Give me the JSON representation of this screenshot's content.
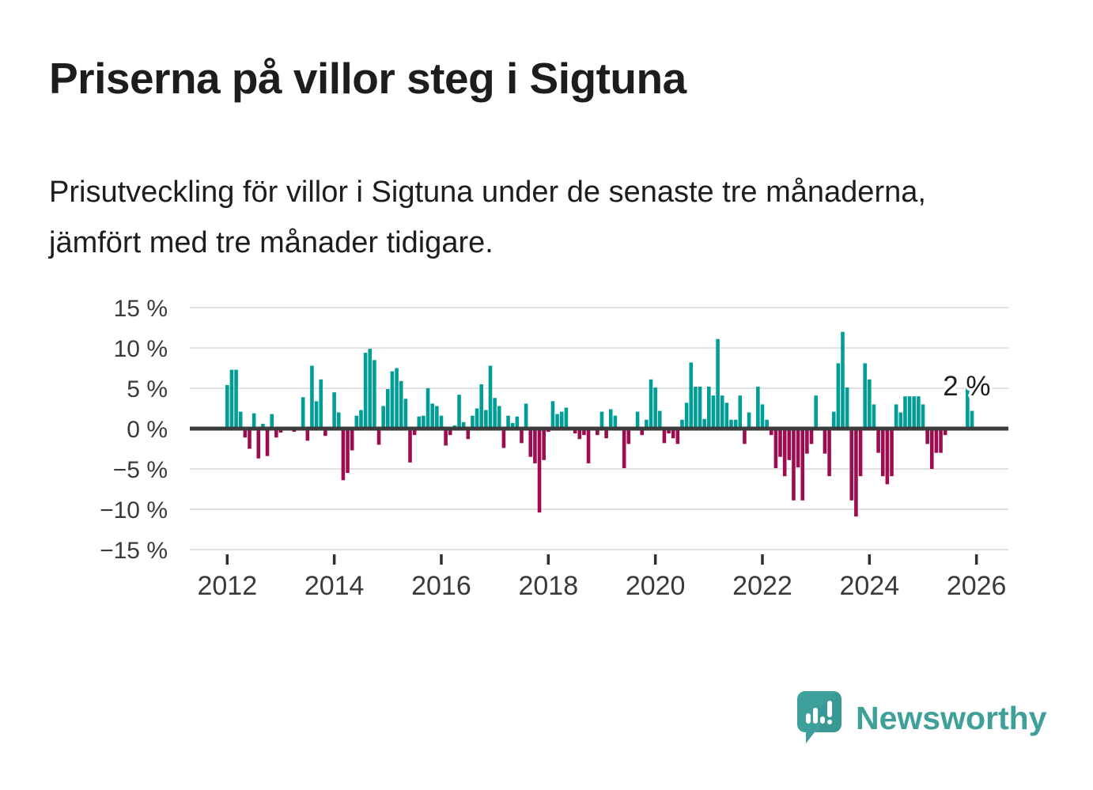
{
  "header": {
    "title": "Priserna på villor steg i Sigtuna",
    "subtitle": "Prisutveckling för villor i Sigtuna under de senaste tre månaderna, jämfört med tre månader tidigare."
  },
  "chart_data": {
    "type": "bar",
    "title": "Priserna på villor steg i Sigtuna",
    "unit": "%",
    "frequency": "monthly",
    "start_month": "2012-01",
    "end_month": "2025-12",
    "values": [
      5.4,
      7.3,
      7.3,
      2.1,
      -1.1,
      -2.5,
      1.9,
      -3.7,
      0.6,
      -3.4,
      1.8,
      -1.1,
      -0.5,
      -0.2,
      0,
      -0.4,
      0,
      3.9,
      -1.5,
      7.8,
      3.4,
      6.1,
      -0.9,
      0,
      4.5,
      2.0,
      -6.4,
      -5.5,
      -2.7,
      1.6,
      2.3,
      9.4,
      9.9,
      8.5,
      -2.0,
      2.8,
      4.9,
      7.1,
      7.5,
      5.9,
      3.7,
      -4.2,
      -0.8,
      1.5,
      1.6,
      5.0,
      3.1,
      2.8,
      1.6,
      -2.1,
      -0.8,
      0.4,
      4.2,
      0.8,
      -1.3,
      1.6,
      2.5,
      5.5,
      2.3,
      7.8,
      3.8,
      2.8,
      -2.4,
      1.6,
      0.7,
      1.5,
      -1.8,
      3.1,
      -3.5,
      -4.3,
      -10.4,
      -3.9,
      -0.4,
      3.4,
      1.8,
      2.1,
      2.6,
      0,
      -0.6,
      -1.3,
      -0.8,
      -4.3,
      0,
      -0.8,
      2.1,
      -1.2,
      2.4,
      1.6,
      0,
      -4.9,
      -1.9,
      0,
      2.1,
      -0.8,
      1.1,
      6.1,
      5.1,
      2.2,
      -1.8,
      -0.6,
      -1.2,
      -1.9,
      1.1,
      3.2,
      8.2,
      5.2,
      5.2,
      1.2,
      5.2,
      4.1,
      11.1,
      4.1,
      3.2,
      1.1,
      1.1,
      4.1,
      -1.9,
      2.0,
      0,
      5.2,
      3.0,
      1.1,
      -0.8,
      -4.9,
      -3.5,
      -5.9,
      -3.9,
      -8.9,
      -4.8,
      -8.9,
      -3.1,
      -1.9,
      4.1,
      0,
      -3.1,
      -5.9,
      2.1,
      8.1,
      12.0,
      5.1,
      -8.9,
      -10.9,
      -5.9,
      8.1,
      6.1,
      3.0,
      -3.0,
      -5.9,
      -6.9,
      -5.9,
      3.0,
      2.0,
      4.0,
      4.0,
      4.0,
      4.0,
      3.0,
      -1.9,
      -5.0,
      -3.0,
      -3.0,
      -0.8,
      0,
      0,
      0,
      0,
      6.0,
      2.2
    ],
    "x_tick_labels": [
      "2012",
      "2014",
      "2016",
      "2018",
      "2020",
      "2022",
      "2024",
      "2026"
    ],
    "y_ticks": [
      15,
      10,
      5,
      0,
      -5,
      -10,
      -15
    ],
    "y_tick_labels": [
      "15 %",
      "10 %",
      "5 %",
      "0 %",
      "−5 %",
      "−10 %",
      "−15 %"
    ],
    "ylim": [
      -15,
      15
    ],
    "grid": "horizontal",
    "legend": "none",
    "annotation": {
      "text": "2 %",
      "value": 2,
      "target": "last-bar"
    },
    "colors": {
      "positive": "#009E97",
      "negative": "#9D0C4F",
      "zero_line": "#3C3C3C",
      "gridline": "#E1E1E1",
      "axis_text": "#3A3A3A",
      "annotation_text": "#1d1d1b"
    }
  },
  "footer": {
    "brand": "Newsworthy",
    "brand_color": "#3FA09A",
    "icon_color": "#3EA09B",
    "icon_shade_color": "#318D87"
  }
}
